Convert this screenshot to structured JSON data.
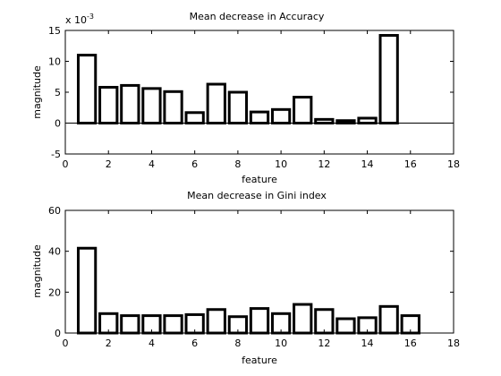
{
  "chart_data": [
    {
      "type": "bar",
      "title": "Mean decrease in Accuracy",
      "xlabel": "feature",
      "ylabel": "magnitude",
      "exponent_label": "x 10",
      "exponent_power": "-3",
      "xlim": [
        0,
        18
      ],
      "ylim": [
        -5,
        15
      ],
      "xticks": [
        "0",
        "2",
        "4",
        "6",
        "8",
        "10",
        "12",
        "14",
        "16",
        "18"
      ],
      "yticks": [
        "-5",
        "0",
        "5",
        "10",
        "15"
      ],
      "categories": [
        1,
        2,
        3,
        4,
        5,
        6,
        7,
        8,
        9,
        10,
        11,
        12,
        13,
        14,
        15
      ],
      "values": [
        11.0,
        5.8,
        6.1,
        5.6,
        5.1,
        1.7,
        6.3,
        5.0,
        1.8,
        2.2,
        4.2,
        0.6,
        0.4,
        0.8,
        14.2
      ],
      "baseline_line": true
    },
    {
      "type": "bar",
      "title": "Mean decrease in Gini index",
      "xlabel": "feature",
      "ylabel": "magnitude",
      "xlim": [
        0,
        18
      ],
      "ylim": [
        0,
        60
      ],
      "xticks": [
        "0",
        "2",
        "4",
        "6",
        "8",
        "10",
        "12",
        "14",
        "16",
        "18"
      ],
      "yticks": [
        "0",
        "20",
        "40",
        "60"
      ],
      "categories": [
        1,
        2,
        3,
        4,
        5,
        6,
        7,
        8,
        9,
        10,
        11,
        12,
        13,
        14,
        15,
        16
      ],
      "values": [
        41.5,
        9.5,
        8.5,
        8.5,
        8.5,
        9.0,
        11.5,
        8.0,
        12.0,
        9.5,
        14.0,
        11.5,
        7.0,
        7.5,
        13.0,
        8.5
      ],
      "baseline_line": false
    }
  ]
}
